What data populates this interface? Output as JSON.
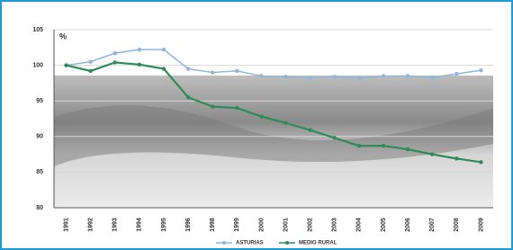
{
  "chart_data": {
    "type": "line",
    "y_unit_label": "%",
    "categories": [
      "1991",
      "1992",
      "1993",
      "1994",
      "1995",
      "1996",
      "1998",
      "1999",
      "2000",
      "2001",
      "2002",
      "2003",
      "2004",
      "2005",
      "2006",
      "2007",
      "2008",
      "2009"
    ],
    "series": [
      {
        "name": "ASTURIAS",
        "color": "#8fb6dc",
        "values": [
          100,
          100.5,
          101.7,
          102.2,
          102.2,
          99.5,
          99.0,
          99.2,
          98.5,
          98.4,
          98.2,
          98.4,
          98.2,
          98.5,
          98.5,
          98.3,
          98.8,
          99.3
        ]
      },
      {
        "name": "MEDIO RURAL",
        "color": "#2e8b57",
        "values": [
          100,
          99.2,
          100.4,
          100.1,
          99.5,
          95.5,
          94.2,
          94.0,
          92.8,
          91.9,
          90.9,
          89.8,
          88.7,
          88.7,
          88.2,
          87.5,
          86.9,
          86.4
        ]
      }
    ],
    "ylim": [
      80,
      105
    ],
    "yticks": [
      80,
      85,
      90,
      95,
      100,
      105
    ],
    "grid": true,
    "legend": "bottom"
  }
}
